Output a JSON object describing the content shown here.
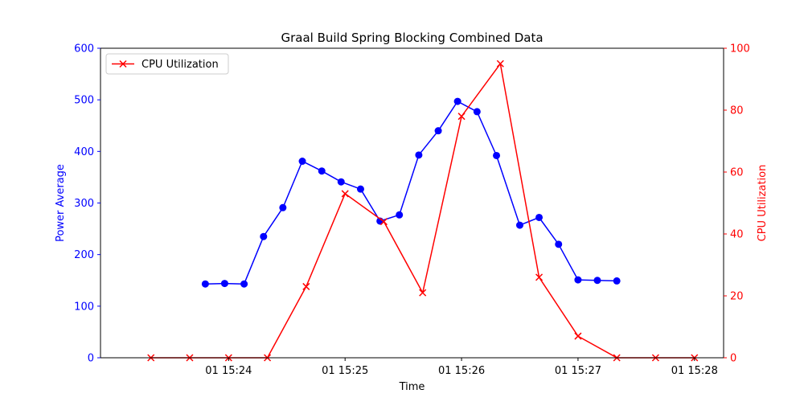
{
  "chart_data": {
    "type": "line",
    "title": "Graal Build Spring Blocking Combined Data",
    "xlabel": "Time",
    "ylabel_left": "Power Average",
    "ylabel_right": "CPU Utilization",
    "x_unit": "minutes past 15:00 on day 01",
    "xlim": [
      22.9,
      28.25
    ],
    "ylim_left": [
      0,
      600
    ],
    "ylim_right": [
      0,
      100
    ],
    "x_ticks": [
      {
        "value": 24,
        "label": "01 15:24"
      },
      {
        "value": 25,
        "label": "01 15:25"
      },
      {
        "value": 26,
        "label": "01 15:26"
      },
      {
        "value": 27,
        "label": "01 15:27"
      },
      {
        "value": 28,
        "label": "01 15:28"
      }
    ],
    "y_ticks_left": [
      "0",
      "100",
      "200",
      "300",
      "400",
      "500",
      "600"
    ],
    "y_ticks_right": [
      "0",
      "20",
      "40",
      "60",
      "80",
      "100"
    ],
    "legend": {
      "location": "upper-left",
      "entries": [
        "CPU Utilization"
      ]
    },
    "grid": false,
    "colors": {
      "power": "#0000ff",
      "cpu": "#ff0000"
    },
    "series": [
      {
        "axis": "left",
        "marker": "circle",
        "x": [
          23.8,
          23.966,
          24.133,
          24.3,
          24.466,
          24.633,
          24.8,
          24.966,
          25.133,
          25.3,
          25.466,
          25.633,
          25.8,
          25.966,
          26.133,
          26.3,
          26.5,
          26.666,
          26.833,
          27.0,
          27.166,
          27.333
        ],
        "values": [
          143,
          144,
          143,
          235,
          291,
          381,
          362,
          341,
          327,
          265,
          277,
          393,
          440,
          497,
          477,
          392,
          257,
          272,
          220,
          151,
          150,
          149
        ]
      },
      {
        "name": "CPU Utilization",
        "axis": "right",
        "marker": "x",
        "x": [
          23.333,
          23.666,
          24.0,
          24.333,
          24.666,
          25.0,
          25.333,
          25.666,
          26.0,
          26.333,
          26.666,
          27.0,
          27.333,
          27.666,
          28.0
        ],
        "values": [
          0,
          0,
          0,
          0,
          23,
          53,
          44,
          21,
          78,
          95,
          26,
          7,
          0,
          0,
          0
        ]
      }
    ]
  }
}
